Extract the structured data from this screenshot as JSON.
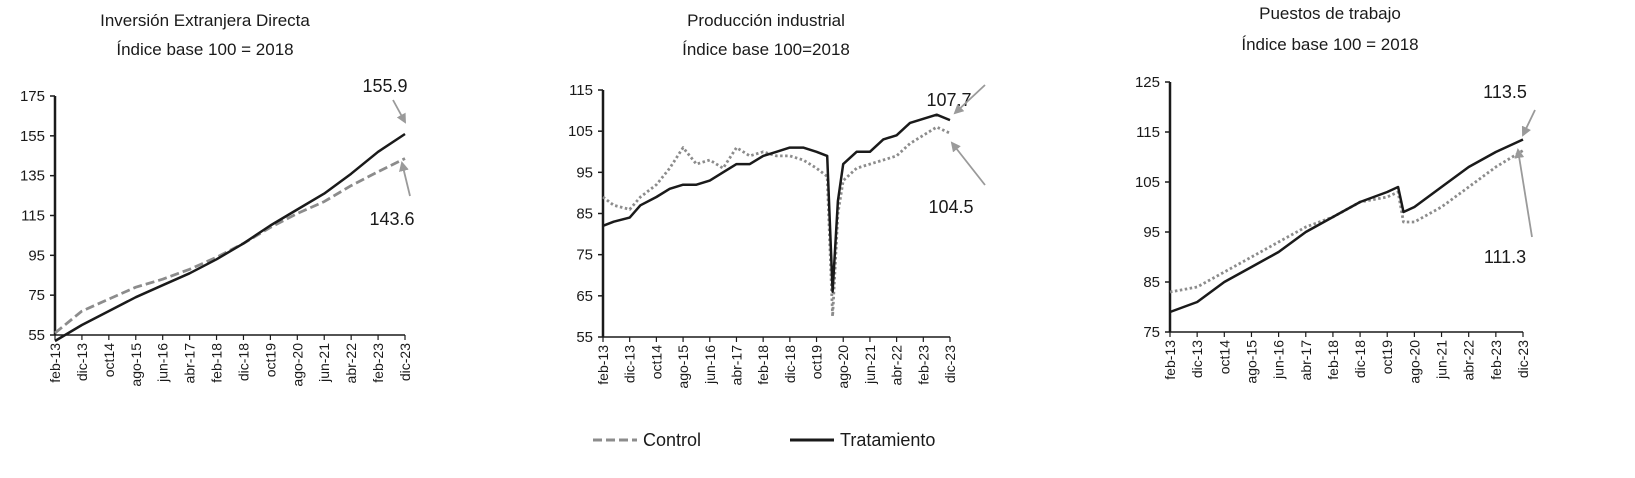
{
  "chart_data": [
    {
      "type": "line",
      "title": "Inversión Extranjera Directa",
      "subtitle": "Índice base 100 = 2018",
      "ylim": [
        55,
        175
      ],
      "yticks": [
        55,
        75,
        95,
        115,
        135,
        155,
        175
      ],
      "x_ticks": [
        "feb-13",
        "dic-13",
        "oct14",
        "ago-15",
        "jun-16",
        "abr-17",
        "feb-18",
        "dic-18",
        "oct19",
        "ago-20",
        "jun-21",
        "abr-22",
        "feb-23",
        "dic-23"
      ],
      "grid": false,
      "series": [
        {
          "name": "Control",
          "style": "dashed",
          "color": "#8c8c8c",
          "x": [
            "feb-13",
            "dic-13",
            "oct14",
            "ago-15",
            "jun-16",
            "abr-17",
            "feb-18",
            "dic-18",
            "oct19",
            "ago-20",
            "jun-21",
            "abr-22",
            "feb-23",
            "dic-23"
          ],
          "values": [
            56,
            67,
            73,
            79,
            83,
            88,
            94,
            101,
            109,
            116,
            122,
            130,
            137,
            143.6
          ]
        },
        {
          "name": "Tratamiento",
          "style": "solid",
          "color": "#1a1a1a",
          "x": [
            "feb-13",
            "dic-13",
            "oct14",
            "ago-15",
            "jun-16",
            "abr-17",
            "feb-18",
            "dic-18",
            "oct19",
            "ago-20",
            "jun-21",
            "abr-22",
            "feb-23",
            "dic-23"
          ],
          "values": [
            52,
            60,
            67,
            74,
            80,
            86,
            93,
            101,
            110,
            118,
            126,
            136,
            147,
            155.9
          ]
        }
      ],
      "annotations": [
        {
          "text": "155.9",
          "series": "Tratamiento",
          "position": "above"
        },
        {
          "text": "143.6",
          "series": "Control",
          "position": "below"
        }
      ]
    },
    {
      "type": "line",
      "title": "Producción industrial",
      "subtitle": "Índice base 100=2018",
      "ylim": [
        55,
        115
      ],
      "yticks": [
        55,
        65,
        75,
        85,
        95,
        105,
        115
      ],
      "x_ticks": [
        "feb-13",
        "dic-13",
        "oct14",
        "ago-15",
        "jun-16",
        "abr-17",
        "feb-18",
        "dic-18",
        "oct19",
        "ago-20",
        "jun-21",
        "abr-22",
        "feb-23",
        "dic-23"
      ],
      "grid": false,
      "series": [
        {
          "name": "Control",
          "style": "dotted",
          "color": "#8c8c8c",
          "x": [
            "feb-13",
            "jun-13",
            "dic-13",
            "abr-14",
            "oct14",
            "mar-15",
            "ago-15",
            "ene-16",
            "jun-16",
            "nov-16",
            "abr-17",
            "sep-17",
            "feb-18",
            "jul-18",
            "dic-18",
            "may-19",
            "oct19",
            "feb-20",
            "abr-20",
            "jun-20",
            "ago-20",
            "ene-21",
            "jun-21",
            "nov-21",
            "abr-22",
            "sep-22",
            "feb-23",
            "jul-23",
            "dic-23"
          ],
          "values": [
            89,
            87,
            86,
            89,
            92,
            96,
            101,
            97,
            98,
            96,
            101,
            99,
            100,
            99,
            99,
            98,
            96,
            94,
            60,
            85,
            93,
            96,
            97,
            98,
            99,
            102,
            104,
            106,
            104.5
          ]
        },
        {
          "name": "Tratamiento",
          "style": "solid",
          "color": "#1a1a1a",
          "x": [
            "feb-13",
            "jun-13",
            "dic-13",
            "abr-14",
            "oct14",
            "mar-15",
            "ago-15",
            "ene-16",
            "jun-16",
            "nov-16",
            "abr-17",
            "sep-17",
            "feb-18",
            "jul-18",
            "dic-18",
            "may-19",
            "oct19",
            "feb-20",
            "abr-20",
            "jun-20",
            "ago-20",
            "ene-21",
            "jun-21",
            "nov-21",
            "abr-22",
            "sep-22",
            "feb-23",
            "jul-23",
            "dic-23"
          ],
          "values": [
            82,
            83,
            84,
            87,
            89,
            91,
            92,
            92,
            93,
            95,
            97,
            97,
            99,
            100,
            101,
            101,
            100,
            99,
            66,
            88,
            97,
            100,
            100,
            103,
            104,
            107,
            108,
            109,
            107.7
          ]
        }
      ],
      "annotations": [
        {
          "text": "107.7",
          "series": "Tratamiento",
          "position": "above"
        },
        {
          "text": "104.5",
          "series": "Control",
          "position": "below"
        }
      ]
    },
    {
      "type": "line",
      "title": "Puestos de trabajo",
      "subtitle": "Índice base 100 = 2018",
      "ylim": [
        75,
        125
      ],
      "yticks": [
        75,
        85,
        95,
        105,
        115,
        125
      ],
      "x_ticks": [
        "feb-13",
        "dic-13",
        "oct14",
        "ago-15",
        "jun-16",
        "abr-17",
        "feb-18",
        "dic-18",
        "oct19",
        "ago-20",
        "jun-21",
        "abr-22",
        "feb-23",
        "dic-23"
      ],
      "grid": false,
      "series": [
        {
          "name": "Control",
          "style": "dotted",
          "color": "#8c8c8c",
          "x": [
            "feb-13",
            "dic-13",
            "oct14",
            "ago-15",
            "jun-16",
            "abr-17",
            "feb-18",
            "dic-18",
            "oct19",
            "feb-20",
            "abr-20",
            "ago-20",
            "jun-21",
            "abr-22",
            "feb-23",
            "dic-23"
          ],
          "values": [
            83,
            84,
            87,
            90,
            93,
            96,
            98,
            101,
            102,
            103,
            97,
            97,
            100,
            104,
            108,
            111.3
          ]
        },
        {
          "name": "Tratamiento",
          "style": "solid",
          "color": "#1a1a1a",
          "x": [
            "feb-13",
            "dic-13",
            "oct14",
            "ago-15",
            "jun-16",
            "abr-17",
            "feb-18",
            "dic-18",
            "oct19",
            "feb-20",
            "abr-20",
            "ago-20",
            "jun-21",
            "abr-22",
            "feb-23",
            "dic-23"
          ],
          "values": [
            79,
            81,
            85,
            88,
            91,
            95,
            98,
            101,
            103,
            104,
            99,
            100,
            104,
            108,
            111,
            113.5
          ]
        }
      ],
      "annotations": [
        {
          "text": "113.5",
          "series": "Tratamiento",
          "position": "above"
        },
        {
          "text": "111.3",
          "series": "Control",
          "position": "below"
        }
      ]
    }
  ],
  "legend": {
    "placement": "bottom-center",
    "items": [
      {
        "label": "Control",
        "style": "dashed",
        "color": "#8c8c8c"
      },
      {
        "label": "Tratamiento",
        "style": "solid",
        "color": "#1a1a1a"
      }
    ]
  }
}
